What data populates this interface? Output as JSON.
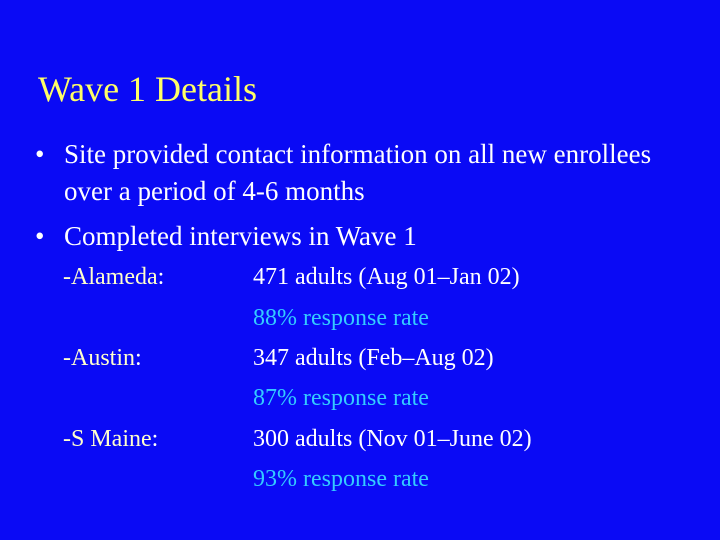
{
  "title": "Wave 1 Details",
  "bullets": [
    "Site provided contact information on all new enrollees over a period of 4-6 months",
    "Completed interviews in Wave 1"
  ],
  "sites": [
    {
      "label": "-Alameda",
      "colon": ":",
      "adults": "471 adults  (Aug 01–Jan 02)",
      "rate": "88% response rate"
    },
    {
      "label": "-Austin",
      "colon": ":",
      "adults": "347 adults  (Feb–Aug 02)",
      "rate": "87% response rate"
    },
    {
      "label": "-S Maine",
      "colon": ":",
      "adults": "300 adults (Nov 01–June 02)",
      "rate": "93% response rate"
    }
  ],
  "bullet_glyph": "•",
  "colors": {
    "background": "#0a0af5",
    "title": "#ffff66",
    "label": "#ffffcc",
    "body": "#ffffff",
    "rate": "#33ccff"
  }
}
